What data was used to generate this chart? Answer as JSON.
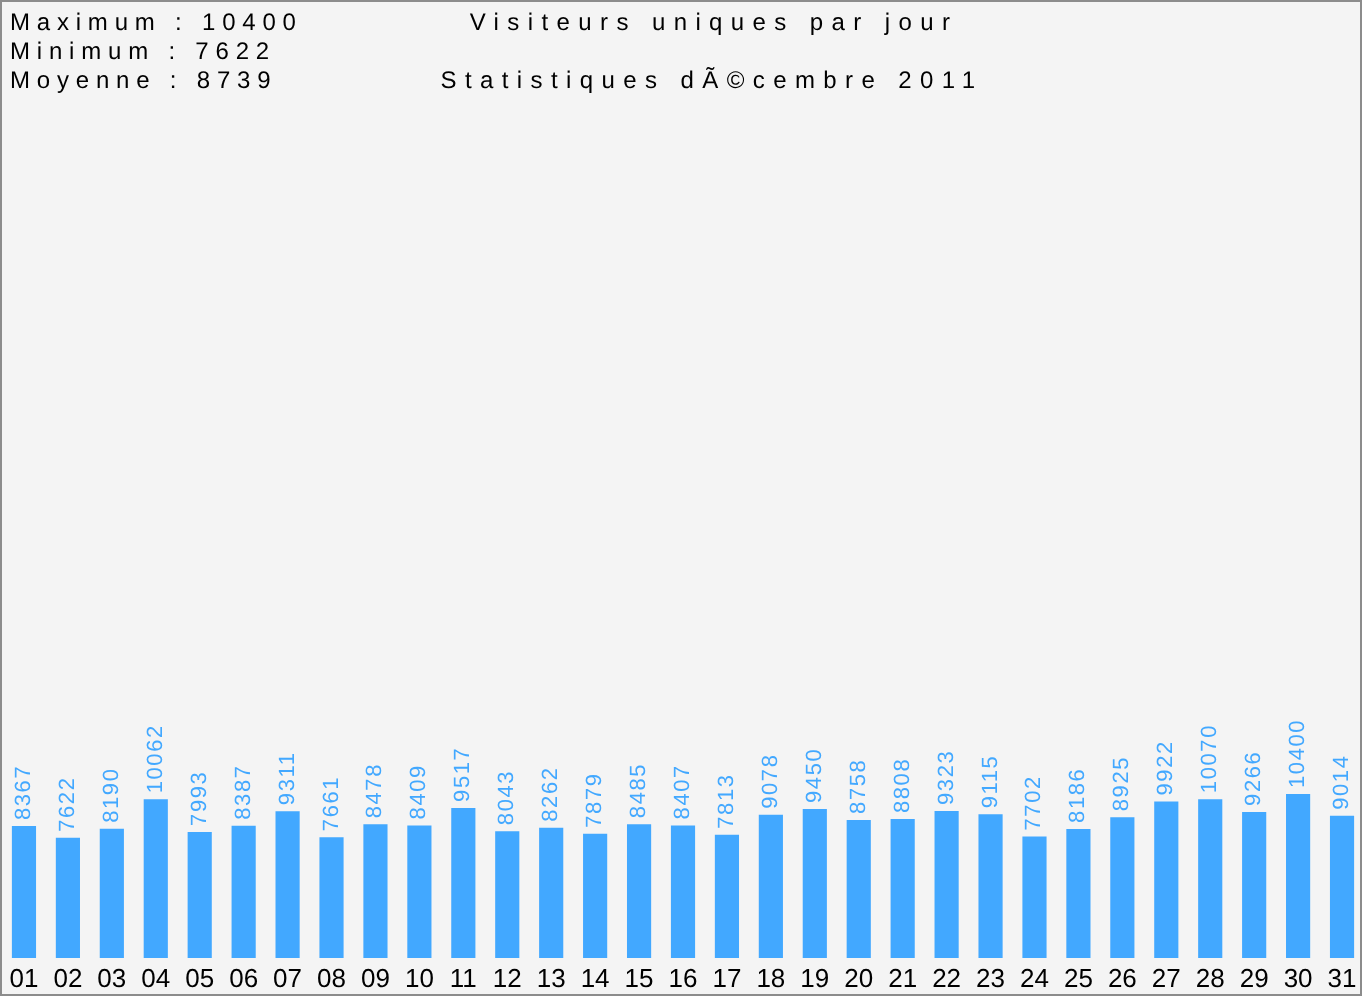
{
  "chart_data": {
    "type": "bar",
    "title": "Visiteurs uniques par jour",
    "subtitle": "Statistiques dÃ©cembre 2011",
    "annotations": [
      "Maximum : 10400",
      "Minimum : 7622",
      "Moyenne : 8739"
    ],
    "categories": [
      "01",
      "02",
      "03",
      "04",
      "05",
      "06",
      "07",
      "08",
      "09",
      "10",
      "11",
      "12",
      "13",
      "14",
      "15",
      "16",
      "17",
      "18",
      "19",
      "20",
      "21",
      "22",
      "23",
      "24",
      "25",
      "26",
      "27",
      "28",
      "29",
      "30",
      "31"
    ],
    "values": [
      8367,
      7622,
      8190,
      10062,
      7993,
      8387,
      9311,
      7661,
      8478,
      8409,
      9517,
      8043,
      8262,
      7879,
      8485,
      8407,
      7813,
      9078,
      9450,
      8758,
      8808,
      9323,
      9115,
      7702,
      8186,
      8925,
      9922,
      10070,
      9266,
      10400,
      9014
    ],
    "color": "#42a8ff",
    "data_labels": true
  }
}
